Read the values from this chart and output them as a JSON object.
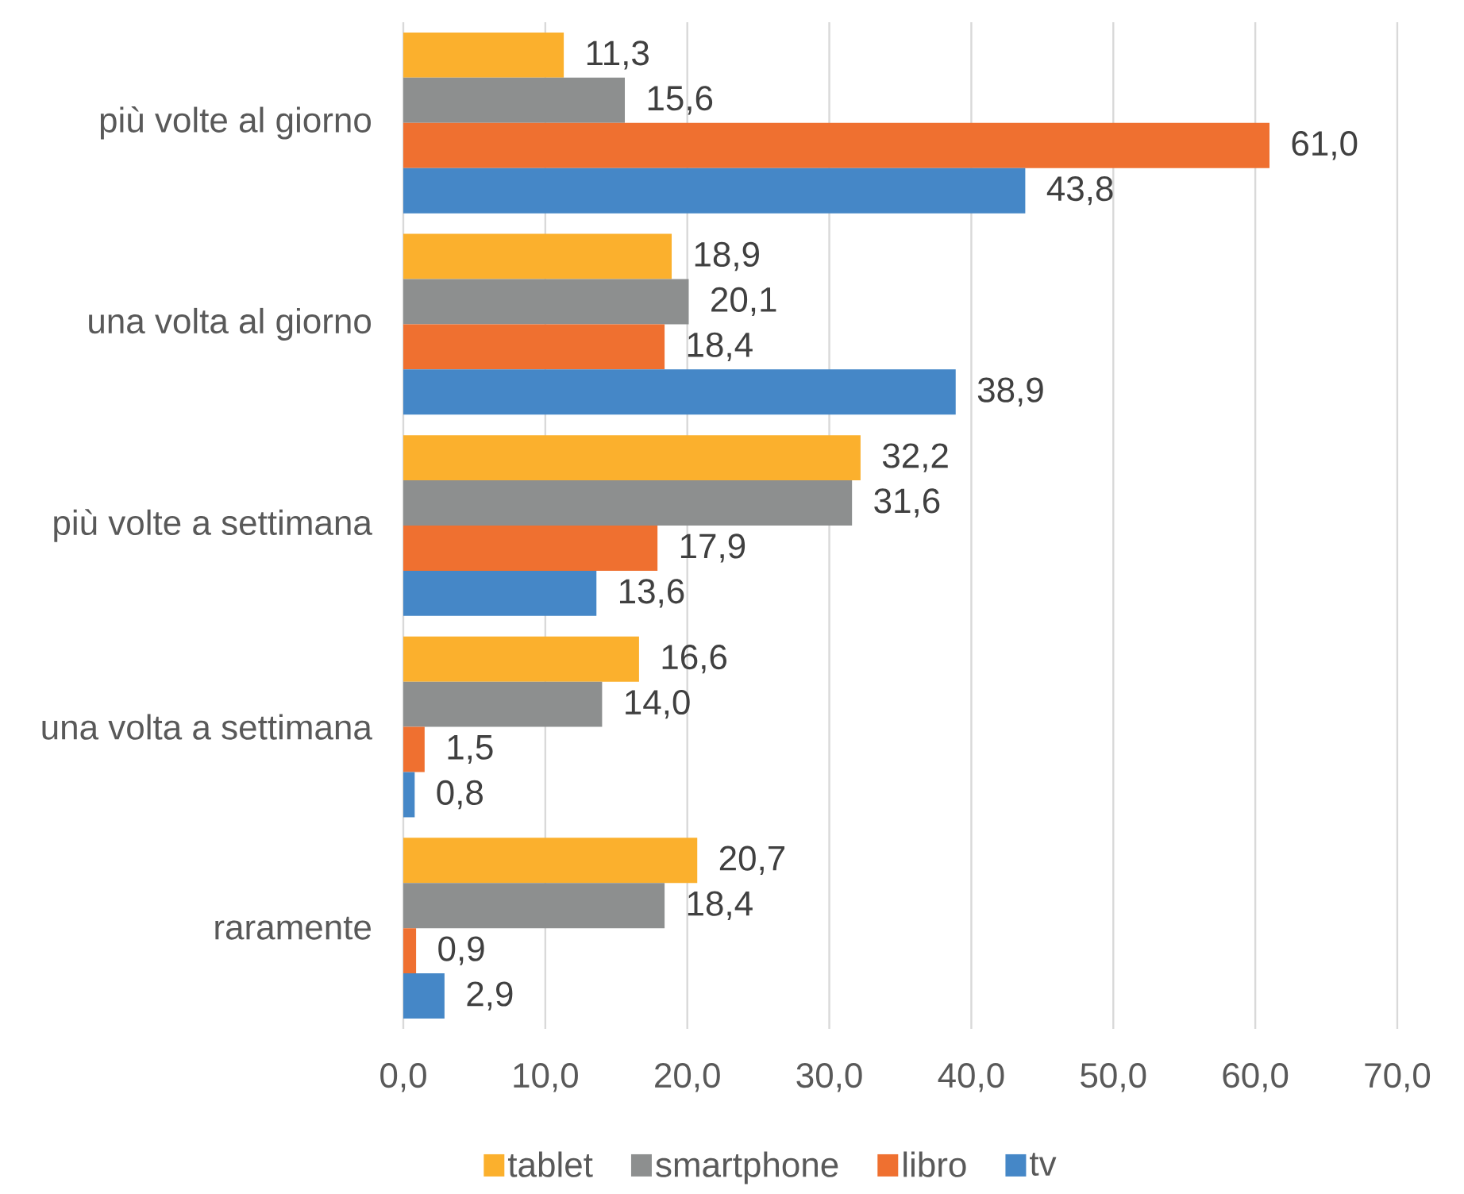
{
  "chart_data": {
    "type": "bar",
    "orientation": "horizontal",
    "categories": [
      "più volte al giorno",
      "una volta al giorno",
      "più volte a settimana",
      "una volta a settimana",
      "raramente"
    ],
    "series": [
      {
        "name": "tablet",
        "color": "#fbb02d",
        "values": [
          11.3,
          18.9,
          32.2,
          16.6,
          20.7
        ],
        "value_labels": [
          "11,3",
          "18,9",
          "32,2",
          "16,6",
          "20,7"
        ]
      },
      {
        "name": "smartphone",
        "color": "#8d8f8f",
        "values": [
          15.6,
          20.1,
          31.6,
          14.0,
          18.4
        ],
        "value_labels": [
          "15,6",
          "20,1",
          "31,6",
          "14,0",
          "18,4"
        ]
      },
      {
        "name": "libro",
        "color": "#ef7030",
        "values": [
          61.0,
          18.4,
          17.9,
          1.5,
          0.9
        ],
        "value_labels": [
          "61,0",
          "18,4",
          "17,9",
          "1,5",
          "0,9"
        ]
      },
      {
        "name": "tv",
        "color": "#4587c7",
        "values": [
          43.8,
          38.9,
          13.6,
          0.8,
          2.9
        ],
        "value_labels": [
          "43,8",
          "38,9",
          "13,6",
          "0,8",
          "2,9"
        ]
      }
    ],
    "xlim": [
      0,
      70
    ],
    "xticks": [
      {
        "value": 0,
        "label": "0,0"
      },
      {
        "value": 10,
        "label": "10,0"
      },
      {
        "value": 20,
        "label": "20,0"
      },
      {
        "value": 30,
        "label": "30,0"
      },
      {
        "value": 40,
        "label": "40,0"
      },
      {
        "value": 50,
        "label": "50,0"
      },
      {
        "value": 60,
        "label": "60,0"
      },
      {
        "value": 70,
        "label": "70,0"
      }
    ],
    "grid": "x",
    "legend": "bottom"
  }
}
